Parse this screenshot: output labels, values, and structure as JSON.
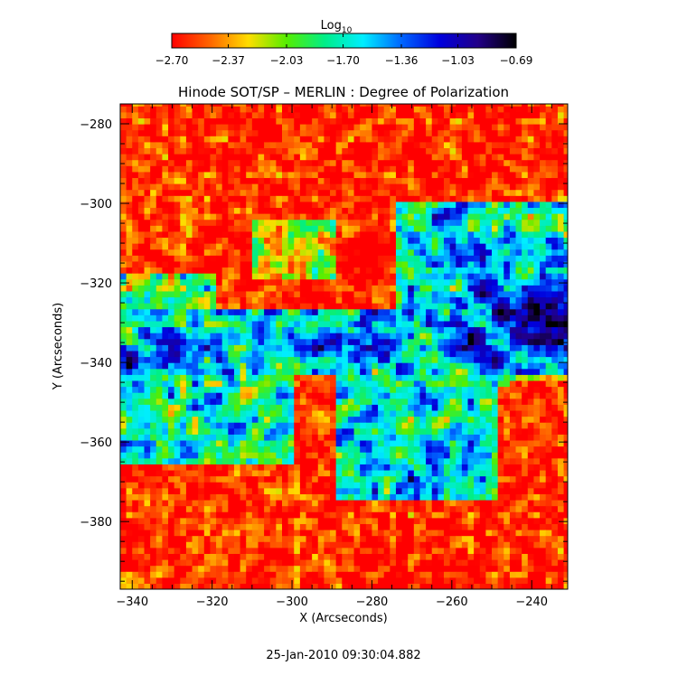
{
  "chart_data": {
    "type": "heatmap",
    "title": "Hinode SOT/SP – MERLIN : Degree of Polarization",
    "xlabel": "X (Arcseconds)",
    "ylabel": "Y (Arcseconds)",
    "xlim": [
      -343,
      -231
    ],
    "ylim": [
      -397,
      -275
    ],
    "x_ticks": [
      -340,
      -320,
      -300,
      -280,
      -260,
      -240
    ],
    "y_ticks": [
      -280,
      -300,
      -320,
      -340,
      -360,
      -380
    ],
    "x_tick_labels": [
      "−340",
      "−320",
      "−300",
      "−280",
      "−260",
      "−240"
    ],
    "y_tick_labels": [
      "−280",
      "−300",
      "−320",
      "−340",
      "−360",
      "−380"
    ],
    "colorbar": {
      "label_base": "Log",
      "label_sub": "10",
      "range": [
        -2.7,
        -0.69
      ],
      "tick_values": [
        -2.7,
        -2.37,
        -2.03,
        -1.7,
        -1.36,
        -1.03,
        -0.69
      ],
      "tick_labels": [
        "−2.70",
        "−2.37",
        "−2.03",
        "−1.70",
        "−1.36",
        "−1.03",
        "−0.69"
      ],
      "colors": [
        "#ff0000",
        "#ff6600",
        "#ffdd00",
        "#55ee00",
        "#00ee88",
        "#00eeff",
        "#0066ff",
        "#0000dd",
        "#220088",
        "#000000"
      ]
    },
    "blobs": [
      {
        "x": -253,
        "y": -322,
        "v": -0.95,
        "sx": 3,
        "sy": 3
      },
      {
        "x": -248,
        "y": -328,
        "v": -0.95,
        "sx": 3,
        "sy": 3
      },
      {
        "x": -237,
        "y": -330,
        "v": -0.75,
        "sx": 7,
        "sy": 6
      },
      {
        "x": -256,
        "y": -335,
        "v": -0.95,
        "sx": 3,
        "sy": 3
      },
      {
        "x": -250,
        "y": -340,
        "v": -1.05,
        "sx": 4,
        "sy": 3
      },
      {
        "x": -331,
        "y": -337,
        "v": -1.05,
        "sx": 3,
        "sy": 4
      },
      {
        "x": -342,
        "y": -341,
        "v": -1.05,
        "sx": 3,
        "sy": 3
      },
      {
        "x": -293,
        "y": -336,
        "v": -1.05,
        "sx": 4,
        "sy": 3
      },
      {
        "x": -284,
        "y": -337,
        "v": -1.05,
        "sx": 3,
        "sy": 3
      },
      {
        "x": -277,
        "y": -337,
        "v": -1.05,
        "sx": 3,
        "sy": 3
      }
    ],
    "bands": [
      {
        "x0": -343,
        "x1": -231,
        "y0": -343,
        "y1": -328,
        "v": -1.55
      },
      {
        "x0": -343,
        "x1": -300,
        "y0": -366,
        "y1": -343,
        "v": -1.75
      },
      {
        "x0": -290,
        "x1": -250,
        "y0": -375,
        "y1": -340,
        "v": -1.65
      },
      {
        "x0": -275,
        "x1": -231,
        "y0": -330,
        "y1": -300,
        "v": -1.6
      },
      {
        "x0": -343,
        "x1": -320,
        "y0": -330,
        "y1": -318,
        "v": -2.0
      },
      {
        "x0": -310,
        "x1": -290,
        "y0": -320,
        "y1": -305,
        "v": -2.05
      },
      {
        "x0": -231,
        "x1": -231,
        "y0": -397,
        "y1": -397,
        "v": -2.7
      }
    ]
  },
  "timestamp": "25-Jan-2010 09:30:04.882"
}
